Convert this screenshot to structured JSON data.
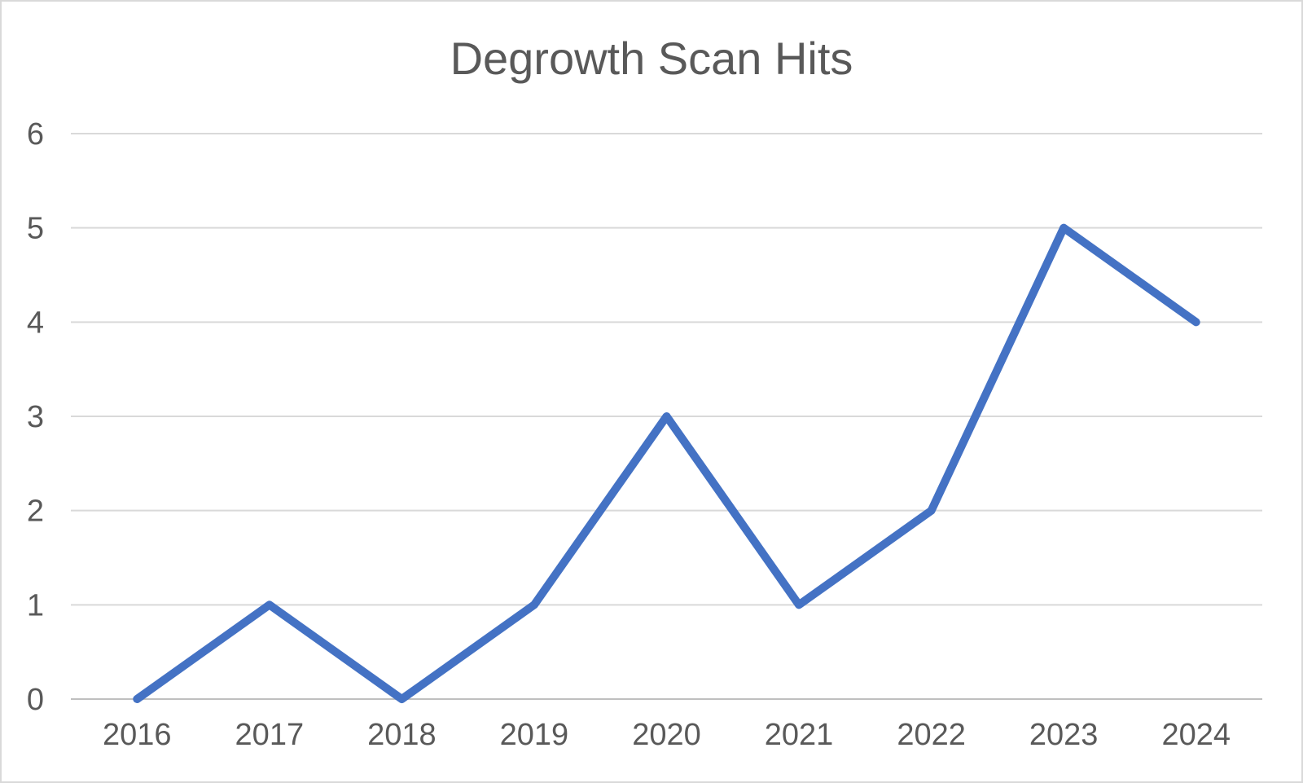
{
  "page": {
    "background_color": "#ffffff",
    "border_color": "#d9d9d9"
  },
  "chart_data": {
    "type": "line",
    "title": "Degrowth Scan Hits",
    "categories": [
      "2016",
      "2017",
      "2018",
      "2019",
      "2020",
      "2021",
      "2022",
      "2023",
      "2024"
    ],
    "values": [
      0,
      1,
      0,
      1,
      3,
      1,
      2,
      5,
      4
    ],
    "xlabel": "",
    "ylabel": "",
    "ylim": [
      0,
      6
    ],
    "yticks": [
      0,
      1,
      2,
      3,
      4,
      5,
      6
    ],
    "grid": true,
    "legend": false,
    "colors": {
      "line": "#4472C4",
      "gridline": "#D9D9D9",
      "axis_line": "#BFBFBF",
      "text": "#595959",
      "title_text": "#595959"
    }
  }
}
